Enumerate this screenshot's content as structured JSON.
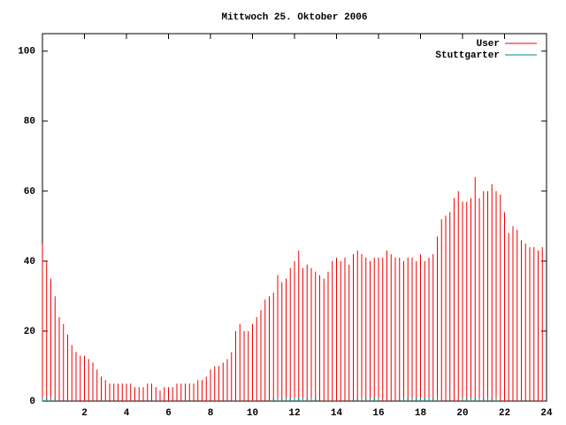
{
  "chart_data": {
    "type": "impulse",
    "title": "Mittwoch 25. Oktober 2006",
    "x": [
      0,
      0.2,
      0.4,
      0.6,
      0.8,
      1,
      1.2,
      1.4,
      1.6,
      1.8,
      2,
      2.2,
      2.4,
      2.6,
      2.8,
      3,
      3.2,
      3.4,
      3.6,
      3.8,
      4,
      4.2,
      4.4,
      4.6,
      4.8,
      5,
      5.2,
      5.4,
      5.6,
      5.8,
      6,
      6.2,
      6.4,
      6.6,
      6.8,
      7,
      7.2,
      7.4,
      7.6,
      7.8,
      8,
      8.2,
      8.4,
      8.6,
      8.8,
      9,
      9.2,
      9.4,
      9.6,
      9.8,
      10,
      10.2,
      10.4,
      10.6,
      10.8,
      11,
      11.2,
      11.4,
      11.6,
      11.8,
      12,
      12.2,
      12.4,
      12.6,
      12.8,
      13,
      13.2,
      13.4,
      13.6,
      13.8,
      14,
      14.2,
      14.4,
      14.6,
      14.8,
      15,
      15.2,
      15.4,
      15.6,
      15.8,
      16,
      16.2,
      16.4,
      16.6,
      16.8,
      17,
      17.2,
      17.4,
      17.6,
      17.8,
      18,
      18.2,
      18.4,
      18.6,
      18.8,
      19,
      19.2,
      19.4,
      19.6,
      19.8,
      20,
      20.2,
      20.4,
      20.6,
      20.8,
      21,
      21.2,
      21.4,
      21.6,
      21.8,
      22,
      22.2,
      22.4,
      22.6,
      22.8,
      23,
      23.2,
      23.4,
      23.6,
      23.8
    ],
    "series": [
      {
        "name": "User",
        "color": "#ee0000",
        "values": [
          45,
          40,
          35,
          30,
          24,
          22,
          19,
          16,
          14,
          13,
          13,
          12,
          11,
          9,
          7,
          6,
          5,
          5,
          5,
          5,
          5,
          5,
          4,
          4,
          4,
          5,
          5,
          4,
          3,
          4,
          4,
          4,
          5,
          5,
          5,
          5,
          5,
          6,
          6,
          7,
          9,
          10,
          10,
          11,
          12,
          14,
          20,
          22,
          20,
          20,
          22,
          24,
          26,
          29,
          30,
          31,
          36,
          34,
          35,
          38,
          40,
          43,
          38,
          39,
          38,
          37,
          36,
          35,
          37,
          40,
          41,
          40,
          41,
          39,
          42,
          43,
          42,
          41,
          40,
          41,
          41,
          41,
          43,
          42,
          41,
          41,
          40,
          41,
          41,
          40,
          42,
          40,
          41,
          42,
          47,
          52,
          53,
          54,
          58,
          60,
          57,
          57,
          58,
          64,
          58,
          60,
          60,
          62,
          60,
          59,
          54,
          48,
          50,
          49,
          46,
          45,
          44,
          44,
          43,
          44
        ]
      },
      {
        "name": "Stuttgarter",
        "color": "#008b8b",
        "values": [
          1,
          1,
          1,
          1,
          0,
          0,
          0,
          0,
          0,
          0,
          0,
          0,
          0,
          0,
          0,
          0,
          0,
          0,
          0,
          0,
          0,
          0,
          0,
          0,
          0,
          0,
          0,
          0,
          0,
          0,
          0,
          0,
          0,
          0,
          0,
          0,
          0,
          0,
          0,
          0,
          0,
          0,
          0,
          0,
          0,
          0,
          0,
          0,
          0,
          0,
          0,
          0,
          0,
          0,
          0,
          1,
          1,
          1,
          1,
          1,
          1,
          1,
          1,
          1,
          1,
          1,
          0,
          0,
          0,
          0,
          0,
          0,
          0,
          0,
          0,
          1,
          1,
          1,
          1,
          1,
          1,
          0,
          0,
          0,
          0,
          1,
          1,
          1,
          1,
          1,
          1,
          1,
          1,
          1,
          1,
          0,
          0,
          0,
          0,
          0,
          1,
          1,
          1,
          1,
          1,
          1,
          1,
          1,
          1,
          0,
          0,
          0,
          0,
          0,
          0,
          0,
          0,
          0,
          0,
          0
        ]
      }
    ],
    "xlim": [
      0,
      24
    ],
    "xticks": [
      2,
      4,
      6,
      8,
      10,
      12,
      14,
      16,
      18,
      20,
      22,
      24
    ],
    "ylim": [
      0,
      105
    ],
    "yticks": [
      0,
      20,
      40,
      60,
      80,
      100
    ],
    "legend": "top-right"
  }
}
